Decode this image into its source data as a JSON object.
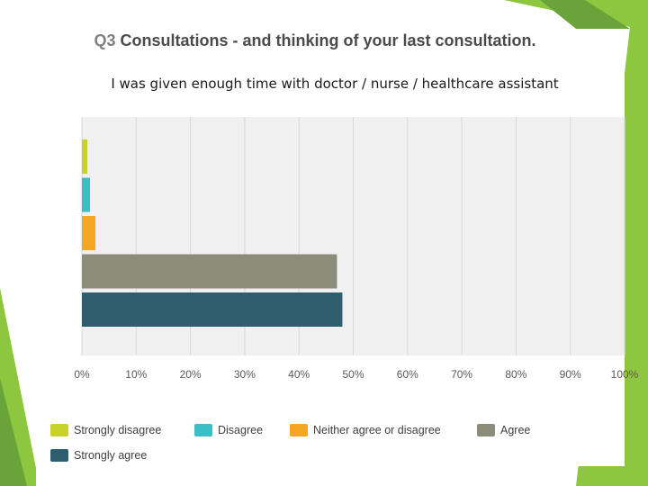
{
  "slide": {
    "title_prefix": "Q3",
    "title_main": "Consultations - and thinking of your last consultation."
  },
  "chart_data": {
    "type": "bar",
    "orientation": "horizontal",
    "title": "I was given enough time with doctor / nurse / healthcare assistant",
    "categories": [
      "Strongly disagree",
      "Disagree",
      "Neither agree or disagree",
      "Agree",
      "Strongly agree"
    ],
    "values": [
      1,
      1.5,
      2.5,
      47,
      48
    ],
    "value_unit": "%",
    "xlim": [
      0,
      100
    ],
    "x_ticks": [
      "0%",
      "10%",
      "20%",
      "30%",
      "40%",
      "50%",
      "60%",
      "70%",
      "80%",
      "90%",
      "100%"
    ],
    "grid": true,
    "legend_position": "bottom",
    "colors": [
      "#c9d12c",
      "#3bbfc6",
      "#f5a623",
      "#8c8c7a",
      "#2e5e6e"
    ]
  },
  "theme": {
    "accent_green": "#8dc63f",
    "plot_background": "#f0f0f0"
  }
}
